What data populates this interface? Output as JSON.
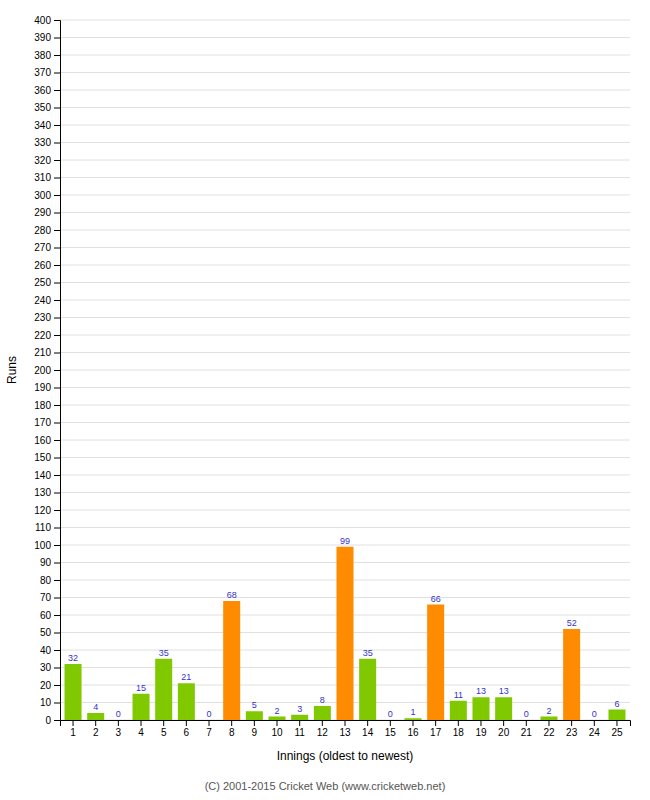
{
  "chart_data": {
    "type": "bar",
    "categories": [
      "1",
      "2",
      "3",
      "4",
      "5",
      "6",
      "7",
      "8",
      "9",
      "10",
      "11",
      "12",
      "13",
      "14",
      "15",
      "16",
      "17",
      "18",
      "19",
      "20",
      "21",
      "22",
      "23",
      "24",
      "25"
    ],
    "values": [
      32,
      4,
      0,
      15,
      35,
      21,
      0,
      68,
      5,
      2,
      3,
      8,
      99,
      35,
      0,
      1,
      66,
      11,
      13,
      13,
      0,
      2,
      52,
      0,
      6
    ],
    "colors": [
      "#80c800",
      "#80c800",
      "#80c800",
      "#80c800",
      "#80c800",
      "#80c800",
      "#80c800",
      "#ff8c00",
      "#80c800",
      "#80c800",
      "#80c800",
      "#80c800",
      "#ff8c00",
      "#80c800",
      "#80c800",
      "#80c800",
      "#ff8c00",
      "#80c800",
      "#80c800",
      "#80c800",
      "#80c800",
      "#80c800",
      "#ff8c00",
      "#80c800",
      "#80c800"
    ],
    "x_label": "Innings (oldest to newest)",
    "y_label": "Runs",
    "ylim": [
      0,
      400
    ],
    "yticks": [
      0,
      10,
      20,
      30,
      40,
      50,
      60,
      70,
      80,
      90,
      100,
      110,
      120,
      130,
      140,
      150,
      160,
      170,
      180,
      190,
      200,
      210,
      220,
      230,
      240,
      250,
      260,
      270,
      280,
      290,
      300,
      310,
      320,
      330,
      340,
      350,
      360,
      370,
      380,
      390,
      400
    ],
    "grid": true,
    "data_labels": true,
    "annotations": [
      "(C) 2001-2015 Cricket Web (www.cricketweb.net)"
    ]
  }
}
